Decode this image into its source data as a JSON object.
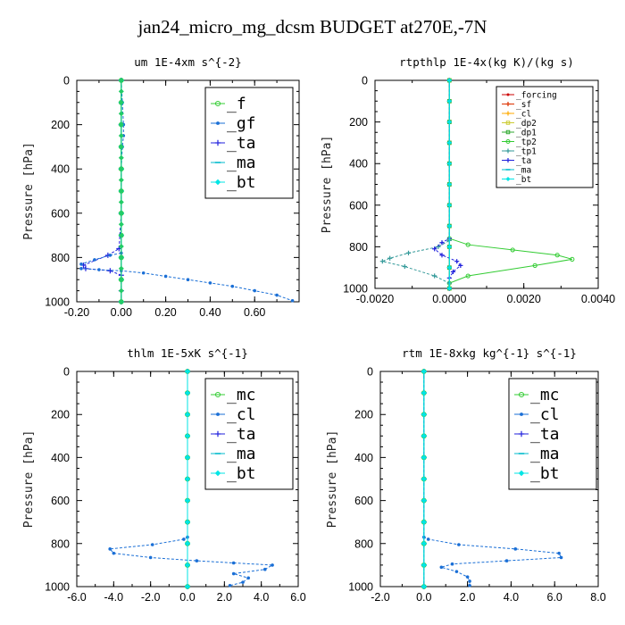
{
  "title": "jan24_micro_mg_dcsm  BUDGET at270E,-7N",
  "chart_data": [
    {
      "type": "line",
      "title": "um   1E-4xm s^{-2}",
      "ylabel": "Pressure [hPa]",
      "xlim": [
        -0.2,
        0.8
      ],
      "ylim": [
        1000,
        0
      ],
      "xticks": [
        -0.2,
        0,
        0.2,
        0.4,
        0.6
      ],
      "xtick_labels": [
        "-0.20",
        "0.00",
        "0.20",
        "0.40",
        "0.60"
      ],
      "yticks": [
        0,
        200,
        400,
        600,
        800,
        1000
      ],
      "legend": {
        "placement": "top-right",
        "size": "large"
      },
      "series": [
        {
          "name": "_f",
          "color": "#33cc33",
          "marker": "circle",
          "x": [
            0,
            0,
            0,
            0,
            0,
            0,
            0,
            0,
            0,
            0,
            0
          ],
          "y": [
            0,
            100,
            200,
            300,
            400,
            500,
            600,
            700,
            800,
            900,
            1000
          ]
        },
        {
          "name": "_gf",
          "color": "#1a6fd6",
          "marker": "dot",
          "x": [
            0,
            0.005,
            0.01,
            0.01,
            0.005,
            0,
            0,
            0,
            0,
            0,
            0
          ],
          "y": [
            0,
            100,
            200,
            250,
            300,
            400,
            500,
            600,
            700,
            800,
            1000
          ]
        },
        {
          "name": "_ta",
          "color": "#2222dd",
          "marker": "plus",
          "x": [
            0,
            0,
            0,
            0,
            -0.01,
            -0.06,
            -0.17,
            -0.16,
            -0.05,
            0,
            0,
            0
          ],
          "y": [
            0,
            200,
            400,
            600,
            760,
            790,
            835,
            850,
            860,
            880,
            950,
            1000
          ]
        },
        {
          "name": "_ma",
          "color": "#00bbcc",
          "marker": "dash",
          "x": [
            0,
            0,
            0,
            0,
            0,
            0,
            0,
            0,
            0,
            0,
            0
          ],
          "y": [
            0,
            100,
            200,
            300,
            400,
            500,
            600,
            700,
            800,
            900,
            1000
          ]
        },
        {
          "name": "_bt",
          "color": "#00e5e5",
          "marker": "diamond",
          "x": [
            0,
            0,
            0,
            0,
            0,
            0,
            0,
            0,
            0,
            0,
            0
          ],
          "y": [
            0,
            100,
            200,
            300,
            400,
            500,
            600,
            700,
            800,
            900,
            1000
          ]
        },
        {
          "name": "",
          "color": "#1a6fd6",
          "marker": "dot",
          "x": [
            0,
            -0.05,
            -0.12,
            -0.18,
            -0.18,
            -0.1,
            0,
            0.1,
            0.2,
            0.3,
            0.4,
            0.5,
            0.6,
            0.7,
            0.77
          ],
          "y": [
            780,
            790,
            810,
            830,
            850,
            855,
            860,
            870,
            885,
            900,
            915,
            930,
            950,
            970,
            995
          ]
        },
        {
          "name": "",
          "color": "#22cc66",
          "marker": "diamond",
          "x": [
            0,
            0,
            0,
            0,
            0,
            0,
            0,
            0,
            0,
            0,
            0,
            0,
            0,
            0,
            0,
            0,
            0,
            0,
            0,
            0,
            0
          ],
          "y": [
            0,
            50,
            100,
            150,
            200,
            250,
            300,
            350,
            400,
            450,
            500,
            550,
            600,
            650,
            700,
            750,
            800,
            850,
            900,
            950,
            1000
          ]
        }
      ]
    },
    {
      "type": "line",
      "title": "rtpthlp   1E-4x(kg K)/(kg s)",
      "ylabel": "Pressure [hPa]",
      "xlim": [
        -0.002,
        0.004
      ],
      "ylim": [
        1000,
        0
      ],
      "xticks": [
        -0.002,
        0,
        0.002,
        0.004
      ],
      "xtick_labels": [
        "-0.0020",
        "0.0000",
        "0.0020",
        "0.0040"
      ],
      "yticks": [
        0,
        200,
        400,
        600,
        800,
        1000
      ],
      "legend": {
        "placement": "top-right",
        "size": "small"
      },
      "series": [
        {
          "name": "_forcing",
          "color": "#cc0000",
          "marker": "dot",
          "x": [
            0,
            0,
            0,
            0,
            0,
            0,
            0,
            0,
            0,
            0,
            0
          ],
          "y": [
            0,
            100,
            200,
            300,
            400,
            500,
            600,
            700,
            800,
            900,
            1000
          ]
        },
        {
          "name": "_sf",
          "color": "#dd3300",
          "marker": "plus",
          "x": [
            0,
            0,
            0,
            0,
            0,
            0,
            0,
            0,
            0,
            0,
            0
          ],
          "y": [
            0,
            100,
            200,
            300,
            400,
            500,
            600,
            700,
            800,
            900,
            1000
          ]
        },
        {
          "name": "_cl",
          "color": "#ffaa00",
          "marker": "plus",
          "x": [
            0,
            0,
            0,
            0,
            0,
            0,
            0,
            0,
            0,
            0,
            0
          ],
          "y": [
            0,
            100,
            200,
            300,
            400,
            500,
            600,
            700,
            800,
            900,
            1000
          ]
        },
        {
          "name": "_dp2",
          "color": "#cccc33",
          "marker": "square",
          "x": [
            0,
            0,
            0,
            0,
            0,
            0,
            0,
            0,
            0,
            0,
            0
          ],
          "y": [
            0,
            100,
            200,
            300,
            400,
            500,
            600,
            700,
            800,
            900,
            1000
          ]
        },
        {
          "name": "_dp1",
          "color": "#33aa33",
          "marker": "square",
          "x": [
            0,
            0,
            0,
            0,
            0,
            0,
            0,
            0,
            0,
            0,
            0
          ],
          "y": [
            0,
            100,
            200,
            300,
            400,
            500,
            600,
            700,
            800,
            900,
            1000
          ]
        },
        {
          "name": "_tp2",
          "color": "#33cc33",
          "marker": "circle",
          "x": [
            0,
            0,
            0.0005,
            0.0017,
            0.0029,
            0.0033,
            0.0023,
            0.0005,
            0,
            0
          ],
          "y": [
            0,
            760,
            790,
            815,
            840,
            860,
            890,
            940,
            975,
            1000
          ]
        },
        {
          "name": "_tp1",
          "color": "#339999",
          "marker": "plus",
          "x": [
            0,
            0,
            -0.0003,
            -0.0011,
            -0.0016,
            -0.0018,
            -0.0012,
            -0.0004,
            0,
            0
          ],
          "y": [
            0,
            770,
            800,
            830,
            855,
            870,
            895,
            940,
            975,
            1000
          ]
        },
        {
          "name": "_ta",
          "color": "#2222dd",
          "marker": "plus",
          "x": [
            0,
            0,
            -0.0002,
            -0.0004,
            -0.0002,
            0.0002,
            0.0003,
            0.0001,
            0,
            0
          ],
          "y": [
            0,
            760,
            780,
            810,
            840,
            870,
            890,
            920,
            950,
            1000
          ]
        },
        {
          "name": "_ma",
          "color": "#00bbcc",
          "marker": "dash",
          "x": [
            0,
            0,
            0,
            0,
            0,
            0,
            0,
            0,
            0,
            0,
            0
          ],
          "y": [
            0,
            100,
            200,
            300,
            400,
            500,
            600,
            700,
            800,
            900,
            1000
          ]
        },
        {
          "name": "_bt",
          "color": "#00e5e5",
          "marker": "diamond",
          "x": [
            0,
            0,
            0,
            0,
            0,
            0,
            0,
            0,
            0,
            0,
            0
          ],
          "y": [
            0,
            100,
            200,
            300,
            400,
            500,
            600,
            700,
            800,
            900,
            1000
          ]
        }
      ]
    },
    {
      "type": "line",
      "title": "thlm   1E-5xK s^{-1}",
      "ylabel": "Pressure [hPa]",
      "xlim": [
        -6,
        6
      ],
      "ylim": [
        1000,
        0
      ],
      "xticks": [
        -6,
        -4,
        -2,
        0,
        2,
        4,
        6
      ],
      "xtick_labels": [
        "-6.0",
        "-4.0",
        "-2.0",
        "0.0",
        "2.0",
        "4.0",
        "6.0"
      ],
      "yticks": [
        0,
        200,
        400,
        600,
        800,
        1000
      ],
      "legend": {
        "placement": "top-right",
        "size": "large"
      },
      "series": [
        {
          "name": "_mc",
          "color": "#33cc33",
          "marker": "circle",
          "x": [
            0,
            0,
            0,
            0,
            0,
            0,
            0,
            0,
            0,
            0,
            0
          ],
          "y": [
            0,
            100,
            200,
            300,
            400,
            500,
            600,
            700,
            800,
            900,
            1000
          ]
        },
        {
          "name": "_cl",
          "color": "#1a6fd6",
          "marker": "dot",
          "x": [
            0,
            0,
            -0.2,
            -1.9,
            -4.2,
            -4.0,
            -2.0,
            0.5,
            2.5,
            4.6,
            4.2,
            2.5,
            3.3,
            3.0,
            2.3
          ],
          "y": [
            0,
            770,
            780,
            805,
            825,
            845,
            865,
            880,
            890,
            900,
            920,
            940,
            960,
            980,
            995
          ]
        },
        {
          "name": "_ta",
          "color": "#2222dd",
          "marker": "plus",
          "x": [
            0,
            0,
            0,
            0,
            0,
            0,
            0,
            0,
            0,
            0,
            0
          ],
          "y": [
            0,
            100,
            200,
            300,
            400,
            500,
            600,
            700,
            800,
            900,
            1000
          ]
        },
        {
          "name": "_ma",
          "color": "#00bbcc",
          "marker": "dash",
          "x": [
            0,
            0,
            0,
            0,
            0,
            0,
            0,
            0,
            0,
            0,
            0
          ],
          "y": [
            0,
            100,
            200,
            300,
            400,
            500,
            600,
            700,
            800,
            900,
            1000
          ]
        },
        {
          "name": "_bt",
          "color": "#00e5e5",
          "marker": "diamond",
          "x": [
            0,
            0,
            0,
            0,
            0,
            0,
            0,
            0,
            0,
            0,
            0
          ],
          "y": [
            0,
            100,
            200,
            300,
            400,
            500,
            600,
            700,
            800,
            900,
            1000
          ]
        }
      ]
    },
    {
      "type": "line",
      "title": "rtm   1E-8xkg kg^{-1} s^{-1}",
      "ylabel": "Pressure [hPa]",
      "xlim": [
        -2,
        8
      ],
      "ylim": [
        1000,
        0
      ],
      "xticks": [
        -2,
        0,
        2,
        4,
        6,
        8
      ],
      "xtick_labels": [
        "-2.0",
        "0.0",
        "2.0",
        "4.0",
        "6.0",
        "8.0"
      ],
      "yticks": [
        0,
        200,
        400,
        600,
        800,
        1000
      ],
      "legend": {
        "placement": "top-right",
        "size": "large"
      },
      "series": [
        {
          "name": "_mc",
          "color": "#33cc33",
          "marker": "circle",
          "x": [
            0,
            0,
            0,
            0,
            0,
            0,
            0,
            0,
            0,
            0,
            0
          ],
          "y": [
            0,
            100,
            200,
            300,
            400,
            500,
            600,
            700,
            800,
            900,
            1000
          ]
        },
        {
          "name": "_cl",
          "color": "#1a6fd6",
          "marker": "dot",
          "x": [
            0,
            0,
            0.2,
            1.6,
            4.2,
            6.2,
            6.3,
            3.8,
            1.3,
            0.8,
            1.5,
            2.0,
            2.1,
            2.1
          ],
          "y": [
            0,
            770,
            780,
            805,
            825,
            845,
            865,
            880,
            895,
            910,
            930,
            955,
            975,
            995
          ]
        },
        {
          "name": "_ta",
          "color": "#2222dd",
          "marker": "plus",
          "x": [
            0,
            0,
            0,
            0,
            0,
            0,
            0,
            0,
            0,
            0,
            0
          ],
          "y": [
            0,
            100,
            200,
            300,
            400,
            500,
            600,
            700,
            800,
            900,
            1000
          ]
        },
        {
          "name": "_ma",
          "color": "#00bbcc",
          "marker": "dash",
          "x": [
            0,
            0,
            0,
            0,
            0,
            0,
            0,
            0,
            0,
            0,
            0
          ],
          "y": [
            0,
            100,
            200,
            300,
            400,
            500,
            600,
            700,
            800,
            900,
            1000
          ]
        },
        {
          "name": "_bt",
          "color": "#00e5e5",
          "marker": "diamond",
          "x": [
            0,
            0,
            0,
            0,
            0,
            0,
            0,
            0,
            0,
            0,
            0
          ],
          "y": [
            0,
            100,
            200,
            300,
            400,
            500,
            600,
            700,
            800,
            900,
            1000
          ]
        }
      ]
    }
  ]
}
